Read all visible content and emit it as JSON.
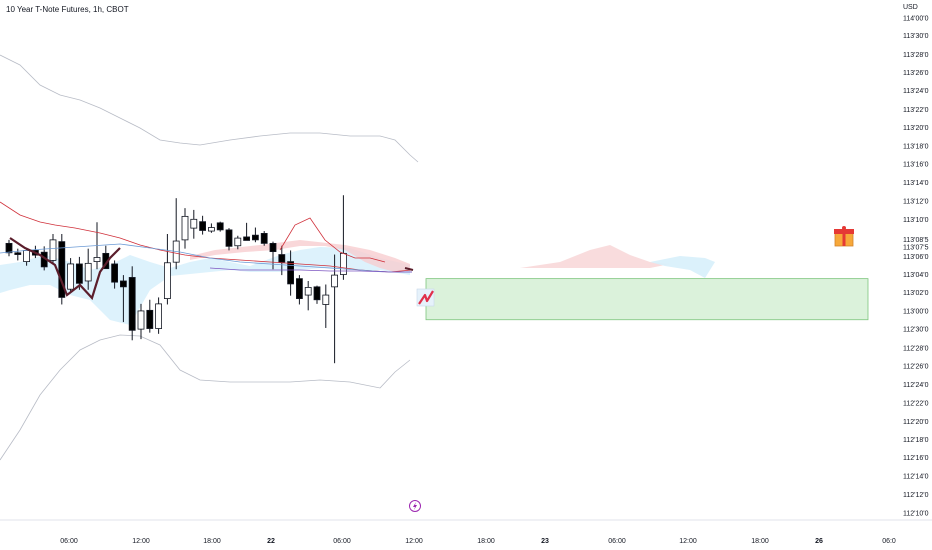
{
  "header": {
    "title": "10 Year T-Note Futures, 1h, CBOT",
    "currency": "USD"
  },
  "icons": {
    "gift": "gift-icon",
    "lightning": "lightning-icon",
    "drawing": "price-drawing-icon"
  },
  "colors": {
    "bull": "#ffffff",
    "bear": "#000000",
    "ribbon_fill": "#d7f0fb",
    "ribbon_red": "#f7cdcf",
    "ma_blue": "#6c9bd6",
    "ma_red": "#d0303a",
    "zone_fill": "#d8f1d8",
    "zone_stroke": "#6fbe6f",
    "purple": "#9c27b0"
  },
  "chart_data": {
    "type": "candlestick",
    "title": "10 Year T-Note Futures, 1h, CBOT",
    "y_axis_labels": [
      "114'00'0",
      "113'30'0",
      "113'28'0",
      "113'26'0",
      "113'24'0",
      "113'22'0",
      "113'20'0",
      "113'18'0",
      "113'16'0",
      "113'14'0",
      "113'12'0",
      "113'10'0",
      "113'08'5",
      "113'07'5",
      "113'06'0",
      "113'04'0",
      "113'02'0",
      "113'00'0",
      "112'30'0",
      "112'28'0",
      "112'26'0",
      "112'24'0",
      "112'22'0",
      "112'20'0",
      "112'18'0",
      "112'16'0",
      "112'14'0",
      "112'12'0",
      "112'10'0"
    ],
    "y_tick_values": [
      113.968,
      113.938,
      113.906,
      113.875,
      113.844,
      113.812,
      113.781,
      113.75,
      113.719,
      113.688,
      113.656,
      113.625,
      113.591,
      113.578,
      113.562,
      113.531,
      113.5,
      113.469,
      113.438,
      113.406,
      113.375,
      113.344,
      113.312,
      113.281,
      113.25,
      113.219,
      113.188,
      113.156,
      113.125
    ],
    "x_axis_labels": [
      "06:00",
      "12:00",
      "18:00",
      "22",
      "06:00",
      "12:00",
      "18:00",
      "23",
      "06:00",
      "12:00",
      "18:00",
      "26",
      "06:0"
    ],
    "ylim": [
      113.113,
      113.978
    ],
    "candles": [
      {
        "o": 113.584,
        "h": 113.59,
        "l": 113.562,
        "c": 113.568
      },
      {
        "o": 113.568,
        "h": 113.575,
        "l": 113.555,
        "c": 113.565
      },
      {
        "o": 113.553,
        "h": 113.575,
        "l": 113.546,
        "c": 113.572
      },
      {
        "o": 113.572,
        "h": 113.58,
        "l": 113.559,
        "c": 113.564
      },
      {
        "o": 113.569,
        "h": 113.579,
        "l": 113.538,
        "c": 113.544
      },
      {
        "o": 113.555,
        "h": 113.6,
        "l": 113.55,
        "c": 113.59
      },
      {
        "o": 113.587,
        "h": 113.6,
        "l": 113.48,
        "c": 113.492
      },
      {
        "o": 113.506,
        "h": 113.559,
        "l": 113.5,
        "c": 113.549
      },
      {
        "o": 113.549,
        "h": 113.561,
        "l": 113.505,
        "c": 113.516
      },
      {
        "o": 113.52,
        "h": 113.575,
        "l": 113.505,
        "c": 113.55
      },
      {
        "o": 113.553,
        "h": 113.62,
        "l": 113.54,
        "c": 113.56
      },
      {
        "o": 113.567,
        "h": 113.58,
        "l": 113.547,
        "c": 113.541
      },
      {
        "o": 113.549,
        "h": 113.555,
        "l": 113.507,
        "c": 113.518
      },
      {
        "o": 113.52,
        "h": 113.53,
        "l": 113.45,
        "c": 113.51
      },
      {
        "o": 113.526,
        "h": 113.545,
        "l": 113.419,
        "c": 113.436
      },
      {
        "o": 113.438,
        "h": 113.481,
        "l": 113.421,
        "c": 113.469
      },
      {
        "o": 113.47,
        "h": 113.488,
        "l": 113.432,
        "c": 113.439
      },
      {
        "o": 113.439,
        "h": 113.492,
        "l": 113.43,
        "c": 113.481
      },
      {
        "o": 113.49,
        "h": 113.6,
        "l": 113.48,
        "c": 113.551
      },
      {
        "o": 113.552,
        "h": 113.661,
        "l": 113.54,
        "c": 113.588
      },
      {
        "o": 113.59,
        "h": 113.644,
        "l": 113.575,
        "c": 113.63
      },
      {
        "o": 113.61,
        "h": 113.641,
        "l": 113.592,
        "c": 113.625
      },
      {
        "o": 113.621,
        "h": 113.631,
        "l": 113.599,
        "c": 113.606
      },
      {
        "o": 113.605,
        "h": 113.618,
        "l": 113.602,
        "c": 113.611
      },
      {
        "o": 113.619,
        "h": 113.621,
        "l": 113.604,
        "c": 113.607
      },
      {
        "o": 113.607,
        "h": 113.61,
        "l": 113.572,
        "c": 113.579
      },
      {
        "o": 113.58,
        "h": 113.597,
        "l": 113.574,
        "c": 113.593
      },
      {
        "o": 113.595,
        "h": 113.619,
        "l": 113.59,
        "c": 113.589
      },
      {
        "o": 113.598,
        "h": 113.611,
        "l": 113.586,
        "c": 113.59
      },
      {
        "o": 113.601,
        "h": 113.605,
        "l": 113.58,
        "c": 113.584
      },
      {
        "o": 113.584,
        "h": 113.587,
        "l": 113.54,
        "c": 113.57
      },
      {
        "o": 113.565,
        "h": 113.58,
        "l": 113.53,
        "c": 113.552
      },
      {
        "o": 113.553,
        "h": 113.572,
        "l": 113.495,
        "c": 113.515
      },
      {
        "o": 113.524,
        "h": 113.53,
        "l": 113.48,
        "c": 113.49
      },
      {
        "o": 113.496,
        "h": 113.52,
        "l": 113.47,
        "c": 113.509
      },
      {
        "o": 113.51,
        "h": 113.512,
        "l": 113.481,
        "c": 113.488
      },
      {
        "o": 113.48,
        "h": 113.514,
        "l": 113.44,
        "c": 113.496
      },
      {
        "o": 113.51,
        "h": 113.565,
        "l": 113.38,
        "c": 113.53
      },
      {
        "o": 113.531,
        "h": 113.666,
        "l": 113.522,
        "c": 113.567
      }
    ],
    "zone": {
      "top": 113.524,
      "bottom": 113.454
    },
    "series": [
      {
        "values": [
          113.53,
          113.533,
          113.548,
          113.555,
          113.542,
          113.518,
          113.47,
          113.498,
          113.532,
          113.563
        ]
      },
      {
        "values": [
          113.62,
          113.61,
          113.608,
          113.6,
          113.59
        ]
      }
    ]
  }
}
